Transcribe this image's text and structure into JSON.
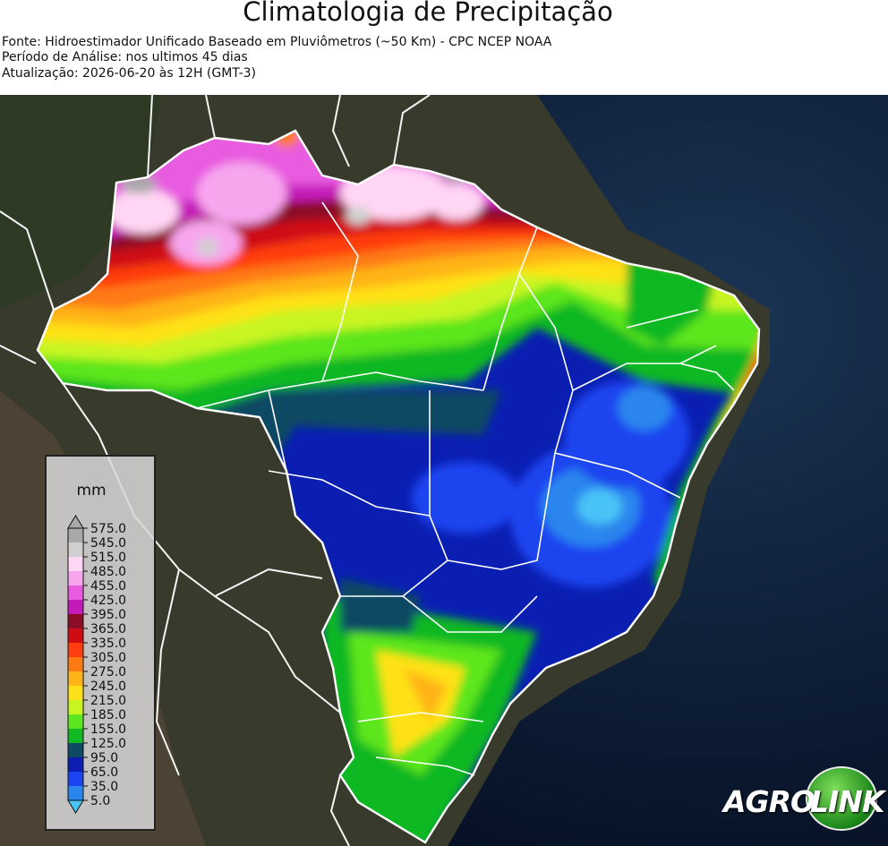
{
  "header": {
    "title": "Climatologia de Precipitação",
    "source_line": "Fonte: Hidroestimador Unificado Baseado em Pluviômetros (~50 Km) - CPC NCEP NOAA",
    "period_line": "Período de Análise: nos ultimos 45 dias",
    "update_line": "Atualização: 2026-06-20 às 12H (GMT-3)"
  },
  "legend": {
    "unit": "mm",
    "ticks": [
      "575.0",
      "545.0",
      "515.0",
      "485.0",
      "455.0",
      "425.0",
      "395.0",
      "365.0",
      "335.0",
      "305.0",
      "275.0",
      "245.0",
      "215.0",
      "185.0",
      "155.0",
      "125.0",
      "95.0",
      "65.0",
      "35.0",
      "5.0"
    ],
    "colors": [
      "#a9a9a9",
      "#d0d0d0",
      "#ffd6f4",
      "#f7a6ee",
      "#e85be0",
      "#c51aba",
      "#8b0c25",
      "#cf0c14",
      "#ff3d10",
      "#ff7a12",
      "#ffb418",
      "#ffe119",
      "#c8f522",
      "#5ce61e",
      "#10b822",
      "#0e4a62",
      "#0a1fb2",
      "#1b44f0",
      "#2a86ee",
      "#48c3f6"
    ]
  },
  "colors": {
    "ocean": "#07162c",
    "land": "#3b3d2e",
    "borders": "#ffffff"
  },
  "logo": {
    "text_left": "AGRO",
    "text_right": "LINK"
  }
}
